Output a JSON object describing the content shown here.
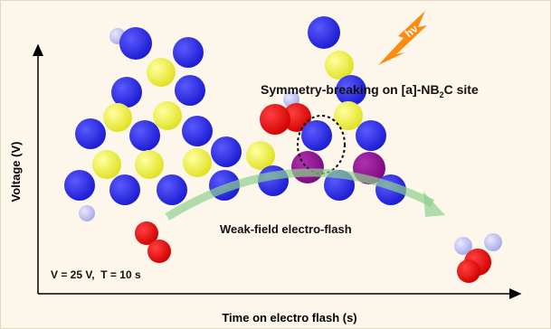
{
  "axes": {
    "y_label": "Voltage (V)",
    "x_label": "Time on electro flash (s)"
  },
  "annotations": {
    "site": [
      "Symmetry-breaking on [a]-NB",
      "2",
      "C site"
    ],
    "light": "hν",
    "flash": "Weak-field electro-flash",
    "conditions": "V = 25 V,  T = 10 s"
  }
}
